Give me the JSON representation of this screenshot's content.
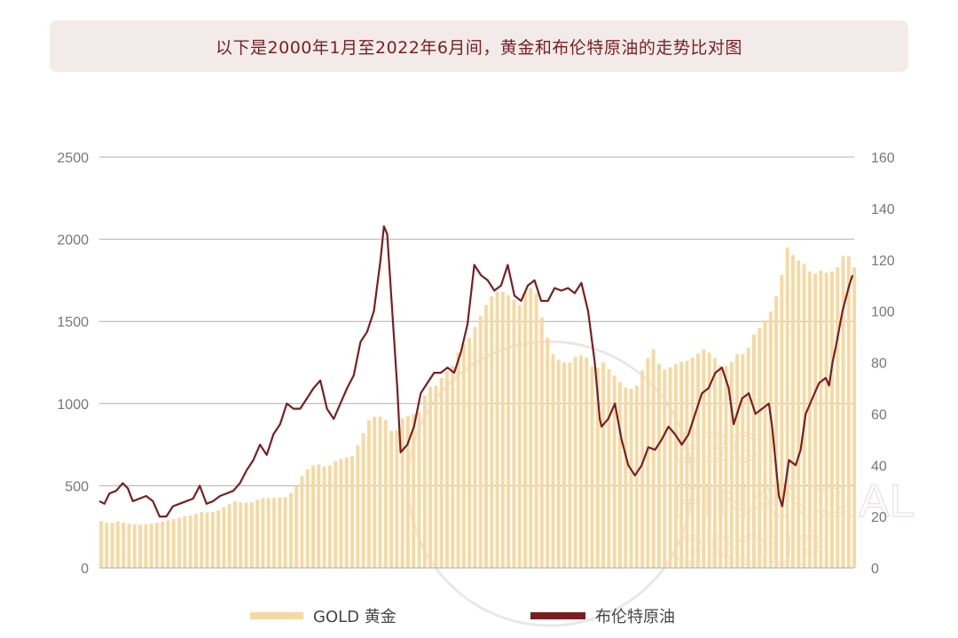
{
  "title": "以下是2000年1月至2022年6月间，黄金和布伦特原油的走势比对图",
  "watermark": {
    "line1": "EBC",
    "line2": "FINANCIAL",
    "line3": "GROUP"
  },
  "chart_data": {
    "type": "bar+line",
    "title": "以下是2000年1月至2022年6月间，黄金和布伦特原油的走势比对图",
    "x_range": [
      "2000-01",
      "2022-06"
    ],
    "left_axis": {
      "ylim": [
        0,
        2500
      ],
      "ticks": [
        "0",
        "500",
        "1000",
        "1500",
        "2000",
        "2500"
      ]
    },
    "right_axis": {
      "ylim": [
        0,
        160
      ],
      "ticks": [
        "0",
        "20",
        "40",
        "60",
        "80",
        "100",
        "120",
        "140",
        "160"
      ]
    },
    "legend_position": "bottom",
    "series": [
      {
        "name": "GOLD 黄金",
        "type": "bar",
        "axis": "left",
        "color": "#f6d9a2",
        "points": [
          [
            2000.0,
            285
          ],
          [
            2000.25,
            270
          ],
          [
            2000.5,
            282
          ],
          [
            2000.75,
            272
          ],
          [
            2001.0,
            265
          ],
          [
            2001.25,
            262
          ],
          [
            2001.5,
            268
          ],
          [
            2001.75,
            278
          ],
          [
            2002.0,
            290
          ],
          [
            2002.25,
            300
          ],
          [
            2002.5,
            315
          ],
          [
            2002.75,
            322
          ],
          [
            2003.0,
            340
          ],
          [
            2003.25,
            335
          ],
          [
            2003.5,
            350
          ],
          [
            2003.75,
            380
          ],
          [
            2004.0,
            405
          ],
          [
            2004.25,
            395
          ],
          [
            2004.5,
            400
          ],
          [
            2004.75,
            425
          ],
          [
            2005.0,
            425
          ],
          [
            2005.25,
            428
          ],
          [
            2005.5,
            430
          ],
          [
            2005.75,
            470
          ],
          [
            2006.0,
            560
          ],
          [
            2006.25,
            620
          ],
          [
            2006.5,
            630
          ],
          [
            2006.75,
            610
          ],
          [
            2007.0,
            650
          ],
          [
            2007.25,
            670
          ],
          [
            2007.5,
            680
          ],
          [
            2007.75,
            780
          ],
          [
            2008.0,
            900
          ],
          [
            2008.25,
            930
          ],
          [
            2008.5,
            900
          ],
          [
            2008.75,
            800
          ],
          [
            2009.0,
            910
          ],
          [
            2009.25,
            930
          ],
          [
            2009.5,
            950
          ],
          [
            2009.75,
            1100
          ],
          [
            2010.0,
            1110
          ],
          [
            2010.25,
            1180
          ],
          [
            2010.5,
            1230
          ],
          [
            2010.75,
            1350
          ],
          [
            2011.0,
            1400
          ],
          [
            2011.25,
            1500
          ],
          [
            2011.5,
            1600
          ],
          [
            2011.75,
            1680
          ],
          [
            2012.0,
            1680
          ],
          [
            2012.25,
            1650
          ],
          [
            2012.5,
            1600
          ],
          [
            2012.75,
            1720
          ],
          [
            2013.0,
            1670
          ],
          [
            2013.25,
            1450
          ],
          [
            2013.5,
            1300
          ],
          [
            2013.75,
            1250
          ],
          [
            2014.0,
            1250
          ],
          [
            2014.25,
            1300
          ],
          [
            2014.5,
            1280
          ],
          [
            2014.75,
            1200
          ],
          [
            2015.0,
            1250
          ],
          [
            2015.25,
            1190
          ],
          [
            2015.5,
            1130
          ],
          [
            2015.75,
            1080
          ],
          [
            2016.0,
            1110
          ],
          [
            2016.25,
            1250
          ],
          [
            2016.5,
            1330
          ],
          [
            2016.75,
            1200
          ],
          [
            2017.0,
            1220
          ],
          [
            2017.25,
            1250
          ],
          [
            2017.5,
            1260
          ],
          [
            2017.75,
            1290
          ],
          [
            2018.0,
            1330
          ],
          [
            2018.25,
            1300
          ],
          [
            2018.5,
            1230
          ],
          [
            2018.75,
            1230
          ],
          [
            2019.0,
            1300
          ],
          [
            2019.25,
            1300
          ],
          [
            2019.5,
            1420
          ],
          [
            2019.75,
            1480
          ],
          [
            2020.0,
            1560
          ],
          [
            2020.25,
            1700
          ],
          [
            2020.5,
            1950
          ],
          [
            2020.75,
            1880
          ],
          [
            2021.0,
            1850
          ],
          [
            2021.25,
            1780
          ],
          [
            2021.5,
            1810
          ],
          [
            2021.75,
            1790
          ],
          [
            2022.0,
            1830
          ],
          [
            2022.25,
            1930
          ],
          [
            2022.5,
            1830
          ]
        ]
      },
      {
        "name": "布伦特原油",
        "type": "line",
        "axis": "right",
        "color": "#7a1e22",
        "points": [
          [
            2000.0,
            26
          ],
          [
            2000.15,
            25
          ],
          [
            2000.3,
            29
          ],
          [
            2000.5,
            30
          ],
          [
            2000.7,
            33
          ],
          [
            2000.85,
            31
          ],
          [
            2001.0,
            26
          ],
          [
            2001.2,
            27
          ],
          [
            2001.4,
            28
          ],
          [
            2001.6,
            26
          ],
          [
            2001.8,
            20
          ],
          [
            2002.0,
            20
          ],
          [
            2002.2,
            24
          ],
          [
            2002.4,
            25
          ],
          [
            2002.6,
            26
          ],
          [
            2002.8,
            27
          ],
          [
            2003.0,
            32
          ],
          [
            2003.2,
            25
          ],
          [
            2003.4,
            26
          ],
          [
            2003.6,
            28
          ],
          [
            2003.8,
            29
          ],
          [
            2004.0,
            30
          ],
          [
            2004.2,
            33
          ],
          [
            2004.4,
            38
          ],
          [
            2004.6,
            42
          ],
          [
            2004.8,
            48
          ],
          [
            2005.0,
            44
          ],
          [
            2005.2,
            52
          ],
          [
            2005.4,
            56
          ],
          [
            2005.6,
            64
          ],
          [
            2005.8,
            62
          ],
          [
            2006.0,
            62
          ],
          [
            2006.2,
            66
          ],
          [
            2006.4,
            70
          ],
          [
            2006.6,
            73
          ],
          [
            2006.8,
            62
          ],
          [
            2007.0,
            58
          ],
          [
            2007.2,
            64
          ],
          [
            2007.4,
            70
          ],
          [
            2007.6,
            75
          ],
          [
            2007.8,
            88
          ],
          [
            2008.0,
            92
          ],
          [
            2008.2,
            100
          ],
          [
            2008.4,
            120
          ],
          [
            2008.5,
            133
          ],
          [
            2008.6,
            130
          ],
          [
            2008.75,
            100
          ],
          [
            2008.9,
            70
          ],
          [
            2009.0,
            45
          ],
          [
            2009.2,
            48
          ],
          [
            2009.4,
            55
          ],
          [
            2009.6,
            68
          ],
          [
            2009.8,
            72
          ],
          [
            2010.0,
            76
          ],
          [
            2010.2,
            76
          ],
          [
            2010.4,
            78
          ],
          [
            2010.6,
            76
          ],
          [
            2010.8,
            84
          ],
          [
            2011.0,
            95
          ],
          [
            2011.2,
            118
          ],
          [
            2011.4,
            114
          ],
          [
            2011.6,
            112
          ],
          [
            2011.8,
            108
          ],
          [
            2012.0,
            110
          ],
          [
            2012.2,
            118
          ],
          [
            2012.4,
            106
          ],
          [
            2012.6,
            104
          ],
          [
            2012.8,
            110
          ],
          [
            2013.0,
            112
          ],
          [
            2013.2,
            104
          ],
          [
            2013.4,
            104
          ],
          [
            2013.6,
            109
          ],
          [
            2013.8,
            108
          ],
          [
            2014.0,
            109
          ],
          [
            2014.2,
            107
          ],
          [
            2014.4,
            111
          ],
          [
            2014.6,
            100
          ],
          [
            2014.8,
            80
          ],
          [
            2014.95,
            58
          ],
          [
            2015.0,
            55
          ],
          [
            2015.2,
            58
          ],
          [
            2015.4,
            64
          ],
          [
            2015.6,
            50
          ],
          [
            2015.8,
            40
          ],
          [
            2016.0,
            36
          ],
          [
            2016.2,
            40
          ],
          [
            2016.4,
            47
          ],
          [
            2016.6,
            46
          ],
          [
            2016.8,
            50
          ],
          [
            2017.0,
            55
          ],
          [
            2017.2,
            52
          ],
          [
            2017.4,
            48
          ],
          [
            2017.6,
            52
          ],
          [
            2017.8,
            60
          ],
          [
            2018.0,
            68
          ],
          [
            2018.2,
            70
          ],
          [
            2018.4,
            76
          ],
          [
            2018.6,
            78
          ],
          [
            2018.8,
            70
          ],
          [
            2018.95,
            56
          ],
          [
            2019.0,
            58
          ],
          [
            2019.2,
            66
          ],
          [
            2019.4,
            68
          ],
          [
            2019.6,
            60
          ],
          [
            2019.8,
            62
          ],
          [
            2020.0,
            64
          ],
          [
            2020.1,
            55
          ],
          [
            2020.3,
            28
          ],
          [
            2020.4,
            24
          ],
          [
            2020.6,
            42
          ],
          [
            2020.8,
            40
          ],
          [
            2020.95,
            46
          ],
          [
            2021.1,
            60
          ],
          [
            2021.3,
            66
          ],
          [
            2021.5,
            72
          ],
          [
            2021.7,
            74
          ],
          [
            2021.8,
            71
          ],
          [
            2021.9,
            80
          ],
          [
            2022.0,
            86
          ],
          [
            2022.2,
            100
          ],
          [
            2022.4,
            110
          ],
          [
            2022.5,
            114
          ]
        ]
      }
    ]
  }
}
